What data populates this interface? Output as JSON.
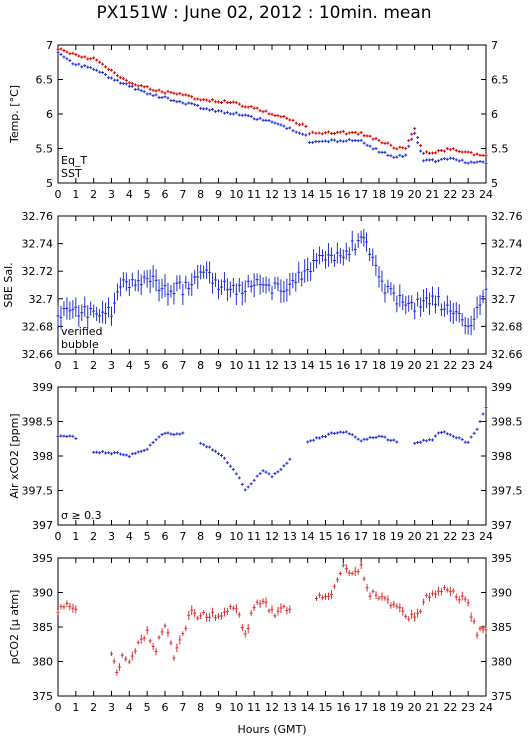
{
  "title": "PX151W : June 02, 2012 : 10min. mean",
  "xlabel": "Hours (GMT)",
  "colors": {
    "eq_t": "#dd0000",
    "sst": "#1f2fd6",
    "verified": "#1f2fd6",
    "bubble": "#cc00cc",
    "pco2": "#e03030",
    "axis": "#000000"
  },
  "chart_data": [
    {
      "type": "scatter",
      "ylabel": "Temp. [°C]",
      "xlim": [
        0,
        24
      ],
      "ylim": [
        5,
        7
      ],
      "xticks": [
        0,
        1,
        2,
        3,
        4,
        5,
        6,
        7,
        8,
        9,
        10,
        11,
        12,
        13,
        14,
        15,
        16,
        17,
        18,
        19,
        20,
        21,
        22,
        23,
        24
      ],
      "yticks": [
        5,
        5.5,
        6,
        6.5,
        7
      ],
      "ytick_labels": [
        "5",
        "5.5",
        "6",
        "6.5",
        "7"
      ],
      "legend": [
        {
          "label": "Eq_T",
          "color": "#dd0000"
        },
        {
          "label": "SST",
          "color": "#1f2fd6"
        }
      ],
      "legend_position": "bottom-left",
      "series": [
        {
          "name": "Eq_T",
          "color": "#dd0000",
          "points": [
            [
              0,
              6.95
            ],
            [
              1,
              6.85
            ],
            [
              2,
              6.8
            ],
            [
              3,
              6.62
            ],
            [
              4,
              6.46
            ],
            [
              5,
              6.38
            ],
            [
              6,
              6.32
            ],
            [
              7,
              6.27
            ],
            [
              8,
              6.22
            ],
            [
              9,
              6.19
            ],
            [
              10,
              6.15
            ],
            [
              11,
              6.08
            ],
            [
              12,
              6
            ],
            [
              13,
              5.92
            ],
            [
              13.9,
              5.82
            ],
            [
              14.1,
              5.72
            ],
            [
              15,
              5.72
            ],
            [
              16,
              5.73
            ],
            [
              17,
              5.72
            ],
            [
              18,
              5.62
            ],
            [
              19,
              5.5
            ],
            [
              19.5,
              5.52
            ],
            [
              20,
              5.78
            ],
            [
              20.5,
              5.45
            ],
            [
              21,
              5.44
            ],
            [
              22,
              5.49
            ],
            [
              23,
              5.43
            ],
            [
              24,
              5.41
            ]
          ]
        },
        {
          "name": "SST",
          "color": "#1f2fd6",
          "points": [
            [
              0,
              6.88
            ],
            [
              1,
              6.72
            ],
            [
              2,
              6.65
            ],
            [
              3,
              6.52
            ],
            [
              4,
              6.4
            ],
            [
              5,
              6.3
            ],
            [
              6,
              6.23
            ],
            [
              7,
              6.17
            ],
            [
              8,
              6.1
            ],
            [
              9,
              6.03
            ],
            [
              10,
              6
            ],
            [
              11,
              5.94
            ],
            [
              12,
              5.88
            ],
            [
              13,
              5.79
            ],
            [
              13.9,
              5.7
            ],
            [
              14.1,
              5.57
            ],
            [
              15,
              5.6
            ],
            [
              16,
              5.62
            ],
            [
              17,
              5.61
            ],
            [
              18,
              5.46
            ],
            [
              19,
              5.37
            ],
            [
              19.5,
              5.42
            ],
            [
              20,
              5.72
            ],
            [
              20.5,
              5.33
            ],
            [
              21,
              5.32
            ],
            [
              22,
              5.35
            ],
            [
              23,
              5.3
            ],
            [
              24,
              5.3
            ]
          ]
        }
      ]
    },
    {
      "type": "scatter",
      "ylabel": "SBE Sal.",
      "xlim": [
        0,
        24
      ],
      "ylim": [
        32.66,
        32.76
      ],
      "xticks": [
        0,
        1,
        2,
        3,
        4,
        5,
        6,
        7,
        8,
        9,
        10,
        11,
        12,
        13,
        14,
        15,
        16,
        17,
        18,
        19,
        20,
        21,
        22,
        23,
        24
      ],
      "yticks": [
        32.66,
        32.68,
        32.7,
        32.72,
        32.74,
        32.76
      ],
      "ytick_labels": [
        "32.66",
        "32.68",
        "32.7",
        "32.72",
        "32.74",
        "32.76"
      ],
      "legend": [
        {
          "label": "verified",
          "color": "#1f2fd6"
        },
        {
          "label": "bubble",
          "color": "#cc00cc"
        }
      ],
      "legend_position": "bottom-left",
      "series": [
        {
          "name": "verified",
          "color": "#1f2fd6",
          "points": [
            [
              0,
              32.688
            ],
            [
              1,
              32.693
            ],
            [
              2,
              32.688
            ],
            [
              3,
              32.69
            ],
            [
              3.5,
              32.712
            ],
            [
              4,
              32.712
            ],
            [
              5,
              32.713
            ],
            [
              6,
              32.708
            ],
            [
              7,
              32.708
            ],
            [
              8,
              32.72
            ],
            [
              9,
              32.71
            ],
            [
              10,
              32.705
            ],
            [
              11,
              32.71
            ],
            [
              12,
              32.708
            ],
            [
              13,
              32.71
            ],
            [
              14,
              32.72
            ],
            [
              15,
              32.73
            ],
            [
              16,
              32.728
            ],
            [
              16.5,
              32.74
            ],
            [
              17,
              32.74
            ],
            [
              17.3,
              32.745
            ],
            [
              18,
              32.712
            ],
            [
              19,
              32.7
            ],
            [
              20,
              32.694
            ],
            [
              21,
              32.7
            ],
            [
              22,
              32.692
            ],
            [
              23,
              32.68
            ],
            [
              24,
              32.705
            ]
          ]
        }
      ]
    },
    {
      "type": "scatter",
      "ylabel": "Air xCO2 [ppm]",
      "xlim": [
        0,
        24
      ],
      "ylim": [
        397,
        399
      ],
      "xticks": [
        0,
        1,
        2,
        3,
        4,
        5,
        6,
        7,
        8,
        9,
        10,
        11,
        12,
        13,
        14,
        15,
        16,
        17,
        18,
        19,
        20,
        21,
        22,
        23,
        24
      ],
      "yticks": [
        397,
        397.5,
        398,
        398.5,
        399
      ],
      "ytick_labels": [
        "397",
        "397.5",
        "398",
        "398.5",
        "399"
      ],
      "legend": [
        {
          "label": "σ ≥ 0.3",
          "color": "#cc00cc"
        }
      ],
      "legend_position": "bottom-left",
      "series": [
        {
          "name": "",
          "color": "#1f2fd6",
          "segments": [
            [
              [
                0,
                398.28
              ],
              [
                0.5,
                398.3
              ],
              [
                1,
                398.25
              ]
            ],
            [
              [
                2,
                398.05
              ],
              [
                3,
                398.05
              ],
              [
                4,
                398
              ],
              [
                4.5,
                398.05
              ],
              [
                5,
                398.1
              ],
              [
                5.5,
                398.25
              ],
              [
                6,
                398.33
              ],
              [
                7,
                398.33
              ]
            ],
            [
              [
                8,
                398.18
              ],
              [
                9,
                398.05
              ],
              [
                10,
                397.75
              ],
              [
                10.5,
                397.5
              ],
              [
                11,
                397.65
              ],
              [
                11.5,
                397.8
              ],
              [
                12,
                397.7
              ],
              [
                13,
                397.95
              ]
            ],
            [
              [
                14,
                398.2
              ],
              [
                15,
                398.3
              ],
              [
                16,
                398.35
              ],
              [
                16.5,
                398.3
              ],
              [
                17,
                398.22
              ],
              [
                18,
                398.3
              ],
              [
                19,
                398.2
              ]
            ],
            [
              [
                20,
                398.18
              ],
              [
                21,
                398.25
              ],
              [
                21.5,
                398.35
              ],
              [
                22,
                398.3
              ],
              [
                23,
                398.2
              ],
              [
                23.5,
                398.4
              ],
              [
                24,
                398.7
              ]
            ]
          ]
        }
      ]
    },
    {
      "type": "scatter",
      "ylabel": "pCO2 [μ atm]",
      "xlim": [
        0,
        24
      ],
      "ylim": [
        375,
        395
      ],
      "xticks": [
        0,
        1,
        2,
        3,
        4,
        5,
        6,
        7,
        8,
        9,
        10,
        11,
        12,
        13,
        14,
        15,
        16,
        17,
        18,
        19,
        20,
        21,
        22,
        23,
        24
      ],
      "yticks": [
        375,
        380,
        385,
        390,
        395
      ],
      "ytick_labels": [
        "375",
        "380",
        "385",
        "390",
        "395"
      ],
      "series": [
        {
          "name": "",
          "color": "#e03030",
          "segments": [
            [
              [
                0,
                387.5
              ],
              [
                0.5,
                388
              ],
              [
                1,
                388
              ]
            ],
            [
              [
                3,
                381.5
              ],
              [
                3.3,
                378
              ],
              [
                3.6,
                380.5
              ],
              [
                4,
                379.5
              ],
              [
                4.5,
                383
              ],
              [
                5,
                384
              ],
              [
                5.5,
                382
              ],
              [
                6,
                385
              ],
              [
                6.5,
                381
              ],
              [
                7,
                384.5
              ],
              [
                7.5,
                387
              ],
              [
                8,
                386.5
              ],
              [
                9,
                386.7
              ],
              [
                10,
                387.8
              ],
              [
                10.5,
                384
              ],
              [
                11,
                388
              ],
              [
                11.5,
                388.5
              ],
              [
                12,
                387
              ],
              [
                13,
                388
              ]
            ],
            [
              [
                14.5,
                389.5
              ],
              [
                15,
                389
              ],
              [
                15.5,
                390.5
              ],
              [
                16,
                393.5
              ],
              [
                16.5,
                393
              ],
              [
                17,
                393.5
              ],
              [
                17.5,
                390
              ],
              [
                18,
                389
              ],
              [
                19,
                388.5
              ],
              [
                19.5,
                387
              ],
              [
                20,
                386
              ],
              [
                20.5,
                388.5
              ],
              [
                21,
                390
              ],
              [
                22,
                390.3
              ],
              [
                23,
                388.5
              ],
              [
                23.5,
                384
              ],
              [
                24,
                385
              ]
            ]
          ]
        }
      ]
    }
  ]
}
